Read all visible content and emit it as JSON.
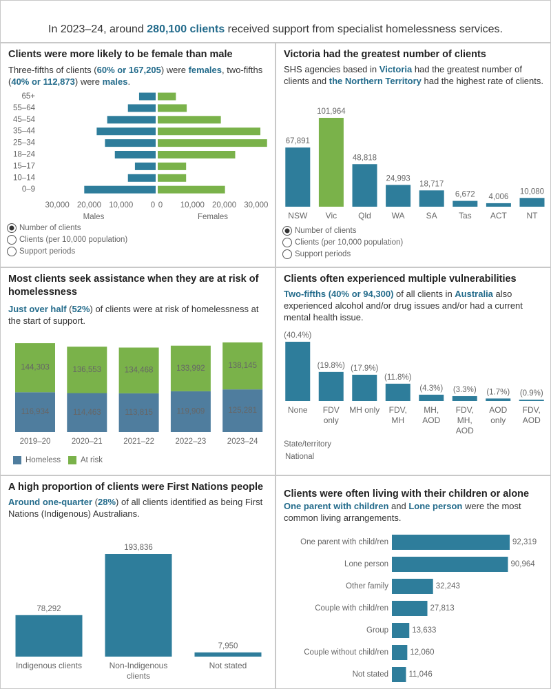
{
  "header": {
    "parts": [
      "In 2023–24, around ",
      {
        "text": "280,100 clients",
        "highlight": true
      },
      " received support from specialist homelessness services."
    ]
  },
  "chart_data": [
    {
      "type": "pyramid",
      "title": "Clients were more likely to be female than male",
      "subtitle": [
        "Three-fifths of clients (",
        {
          "text": "60% or 167,205",
          "highlight": true
        },
        ") were ",
        {
          "text": "females",
          "highlight": true
        },
        ", two-fifths (",
        {
          "text": "40% or 112,873",
          "highlight": true
        },
        ") were ",
        {
          "text": "males",
          "highlight": true
        },
        "."
      ],
      "categories": [
        "65+",
        "55–64",
        "45–54",
        "35–44",
        "25–34",
        "18–24",
        "15–17",
        "10–14",
        "0–9"
      ],
      "series": [
        {
          "name": "Males",
          "color": "#2e7d9b",
          "values": [
            5200,
            8700,
            15200,
            18500,
            15900,
            12800,
            6500,
            8700,
            22400
          ]
        },
        {
          "name": "Females",
          "color": "#7ab24a",
          "values": [
            5700,
            9100,
            19800,
            32200,
            34300,
            24300,
            8900,
            8900,
            21100
          ]
        }
      ],
      "xlim": [
        0,
        35000
      ],
      "xticks": [
        0,
        {
          "value": 10000,
          "label": "10,000"
        },
        {
          "value": 20000,
          "label": "20,000"
        },
        {
          "value": 30000,
          "label": "30,000"
        }
      ],
      "options": [
        "Number of clients",
        "Clients (per 10,000 population)",
        "Support periods"
      ],
      "selected_option": 0
    },
    {
      "type": "bar",
      "title": "Victoria had the greatest number of clients",
      "subtitle": [
        "SHS agencies based in ",
        {
          "text": "Victoria",
          "highlight": true
        },
        " had the greatest number of clients and ",
        {
          "text": "the Northern Territory",
          "highlight": true
        },
        " had the highest rate of clients."
      ],
      "categories": [
        "NSW",
        "Vic",
        "Qld",
        "WA",
        "SA",
        "Tas",
        "ACT",
        "NT"
      ],
      "values": [
        67891,
        101964,
        48818,
        24993,
        18717,
        6672,
        4006,
        10080
      ],
      "value_labels": [
        "67,891",
        "101,964",
        "48,818",
        "24,993",
        "18,717",
        "6,672",
        "4,006",
        "10,080"
      ],
      "colors": [
        "#2e7d9b",
        "#7ab24a",
        "#2e7d9b",
        "#2e7d9b",
        "#2e7d9b",
        "#2e7d9b",
        "#2e7d9b",
        "#2e7d9b"
      ],
      "options": [
        "Number of clients",
        "Clients (per 10,000 population)",
        "Support periods"
      ],
      "selected_option": 0
    },
    {
      "type": "stacked-bar",
      "title": "Most clients seek assistance when they are at risk of homelessness",
      "subtitle": [
        {
          "text": "Just over half",
          "highlight": true
        },
        " (",
        {
          "text": "52%",
          "highlight": true
        },
        ") of clients were at risk of homelessness at the start of support."
      ],
      "categories": [
        "2019–20",
        "2020–21",
        "2021–22",
        "2022–23",
        "2023–24"
      ],
      "series": [
        {
          "name": "Homeless",
          "color": "#4f7d9e",
          "values": [
            116934,
            114463,
            113815,
            119909,
            125281
          ],
          "value_labels": [
            "116,934",
            "114,463",
            "113,815",
            "119,909",
            "125,281"
          ]
        },
        {
          "name": "At risk",
          "color": "#7ab24a",
          "values": [
            144303,
            136553,
            134468,
            133992,
            138145
          ],
          "value_labels": [
            "144,303",
            "136,553",
            "134,468",
            "133,992",
            "138,145"
          ]
        }
      ]
    },
    {
      "type": "bar",
      "title": "Clients often experienced multiple vulnerabilities",
      "subtitle": [
        {
          "text": "Two-fifths (40% or 94,300)",
          "highlight": true
        },
        " of all clients in ",
        {
          "text": "Australia",
          "highlight": true
        },
        " also experienced alcohol and/or drug issues and/or had a current mental health issue."
      ],
      "categories": [
        "None",
        "FDV only",
        "MH only",
        "FDV, MH",
        "MH, AOD",
        "FDV, MH, AOD",
        "AOD only",
        "FDV, AOD"
      ],
      "values": [
        40.4,
        19.8,
        17.9,
        11.8,
        4.3,
        3.3,
        1.7,
        0.9
      ],
      "value_labels": [
        "(40.4%)",
        "(19.8%)",
        "(17.9%)",
        "(11.8%)",
        "(4.3%)",
        "(3.3%)",
        "(1.7%)",
        "(0.9%)"
      ],
      "color": "#2e7d9b",
      "filter_label": "State/territory",
      "filter_value": "National"
    },
    {
      "type": "bar",
      "title": "A high proportion of clients were First Nations people",
      "subtitle": [
        {
          "text": "Around one-quarter",
          "highlight": true
        },
        " (",
        {
          "text": "28%",
          "highlight": true
        },
        ") of all clients identified as being First Nations (Indigenous) Australians."
      ],
      "categories": [
        "Indigenous clients",
        "Non-Indigenous clients",
        "Not stated"
      ],
      "values": [
        78292,
        193836,
        7950
      ],
      "value_labels": [
        "78,292",
        "193,836",
        "7,950"
      ],
      "color": "#2e7d9b"
    },
    {
      "type": "hbar",
      "title": "Clients were often living with their children or alone",
      "subtitle": [
        {
          "text": "One parent with children",
          "highlight": true
        },
        " and ",
        {
          "text": "Lone person",
          "highlight": true
        },
        " were the most common living arrangements."
      ],
      "categories": [
        "One parent with child/ren",
        "Lone person",
        "Other family",
        "Couple with child/ren",
        "Group",
        "Couple without child/ren",
        "Not stated"
      ],
      "values": [
        92319,
        90964,
        32243,
        27813,
        13633,
        12060,
        11046
      ],
      "value_labels": [
        "92,319",
        "90,964",
        "32,243",
        "27,813",
        "13,633",
        "12,060",
        "11,046"
      ],
      "color": "#2e7d9b"
    }
  ]
}
